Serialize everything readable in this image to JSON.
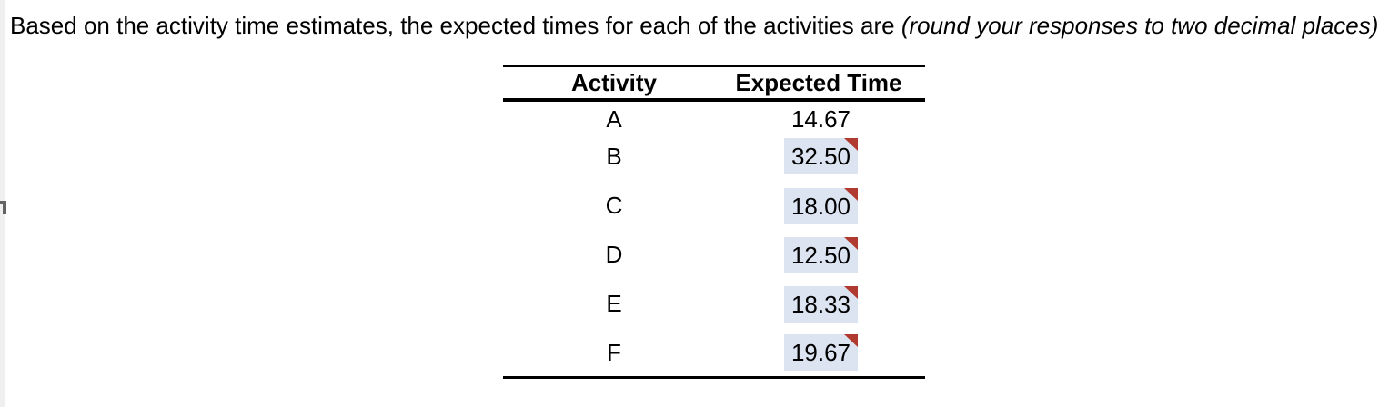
{
  "question": {
    "text": "Based on the activity time estimates, the expected times for each of the activities are ",
    "note_italic": "(round your responses to two decimal places)"
  },
  "table": {
    "col_activity": "Activity",
    "col_expected_time": "Expected Time",
    "rows": [
      {
        "activity": "A",
        "value": "14.67",
        "editable": false
      },
      {
        "activity": "B",
        "value": "32.50",
        "editable": true
      },
      {
        "activity": "C",
        "value": "18.00",
        "editable": true
      },
      {
        "activity": "D",
        "value": "12.50",
        "editable": true
      },
      {
        "activity": "E",
        "value": "18.33",
        "editable": true
      },
      {
        "activity": "F",
        "value": "19.67",
        "editable": true
      }
    ]
  },
  "icons": {
    "answer_marker": "red-corner-triangle"
  },
  "colors": {
    "input_bg": "#dce3f1",
    "marker_red": "#b03a2f",
    "table_rule": "#000000",
    "left_strip": "#efefef"
  }
}
